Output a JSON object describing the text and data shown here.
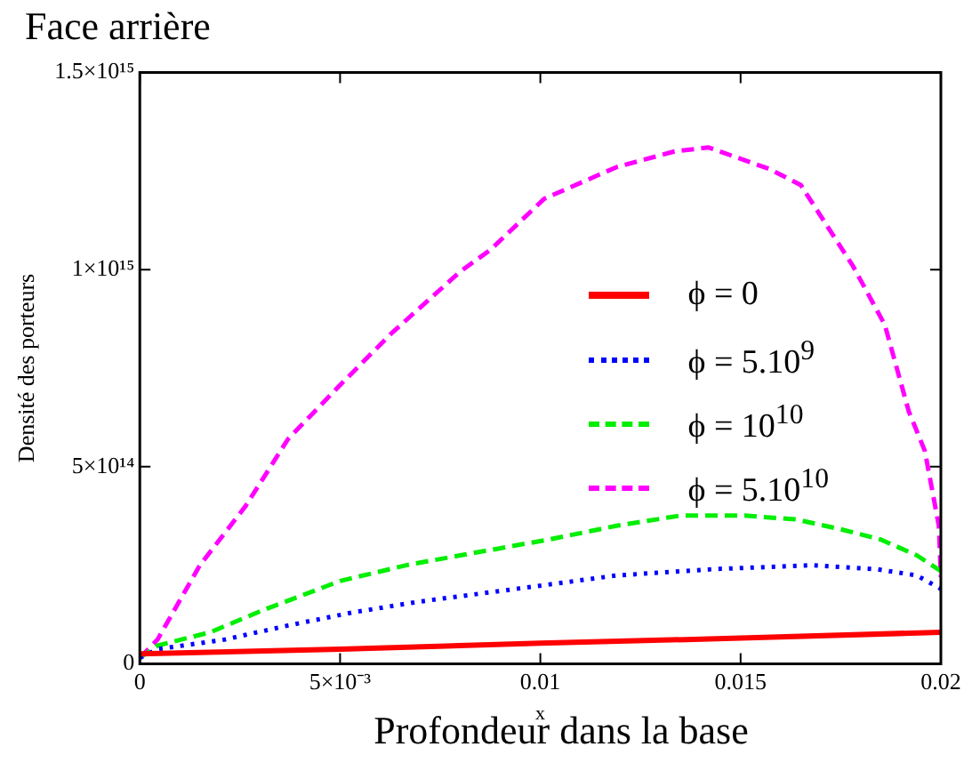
{
  "chart_data": {
    "type": "line",
    "title": "Face arrière",
    "xlabel": "x",
    "ylabel": "Densité des porteurs",
    "annotations": [
      "Profondeur dans la base"
    ],
    "xlim": [
      0,
      0.02
    ],
    "xticks": [
      0,
      {
        "value": 0.005,
        "label": "5×10⁻³"
      },
      0.01,
      0.015,
      0.02
    ],
    "ylim": [
      0,
      1500000000000000.0
    ],
    "yticks": [
      0,
      {
        "value": 500000000000000.0,
        "label": "5×10¹⁴"
      },
      {
        "value": 1000000000000000.0,
        "label": "1×10¹⁵"
      },
      {
        "value": 1500000000000000.0,
        "label": "1.5×10¹⁵"
      }
    ],
    "grid": false,
    "legend": "right",
    "marker": "none",
    "series": [
      {
        "name": "ϕ = 0",
        "color": "#ff0000",
        "line_style": "solid",
        "x": [
          0,
          0.005,
          0.01,
          0.015,
          0.02
        ],
        "values": [
          25000000000000.0,
          37000000000000.0,
          52000000000000.0,
          65000000000000.0,
          80000000000000.0
        ]
      },
      {
        "name": "ϕ = 5.10$^{9}$",
        "color": "#0000ff",
        "line_style": "dotted",
        "x": [
          0,
          0.00044,
          0.0021,
          0.0037,
          0.0053,
          0.007,
          0.0094,
          0.0119,
          0.0143,
          0.0168,
          0.0184,
          0.0194,
          0.02
        ],
        "values": [
          15000000000000.0,
          37000000000000.0,
          61000000000000.0,
          97000000000000.0,
          130000000000000.0,
          158000000000000.0,
          190000000000000.0,
          224000000000000.0,
          240000000000000.0,
          250000000000000.0,
          240000000000000.0,
          224000000000000.0,
          190000000000000.0
        ]
      },
      {
        "name": "ϕ = 10$^{10}$",
        "color": "#00ee00",
        "line_style": "dashed",
        "x": [
          0,
          0.00044,
          0.00176,
          0.0031,
          0.005,
          0.00665,
          0.008,
          0.0102,
          0.0119,
          0.0135,
          0.0151,
          0.0164,
          0.01755,
          0.0185,
          0.0194,
          0.02
        ],
        "values": [
          15000000000000.0,
          46000000000000.0,
          80000000000000.0,
          137000000000000.0,
          210000000000000.0,
          250000000000000.0,
          275000000000000.0,
          315000000000000.0,
          350000000000000.0,
          376000000000000.0,
          376000000000000.0,
          366000000000000.0,
          340000000000000.0,
          315000000000000.0,
          275000000000000.0,
          235000000000000.0
        ]
      },
      {
        "name": "ϕ = 5.10$^{10}$",
        "color": "#ff00ff",
        "line_style": "dashed",
        "x": [
          0,
          0.00044,
          0.0015,
          0.00264,
          0.0037,
          0.005,
          0.0063,
          0.008,
          0.00875,
          0.0101,
          0.0119,
          0.01335,
          0.0142,
          0.0157,
          0.0165,
          0.0178,
          0.0186,
          0.0192,
          0.0196,
          0.01995,
          0.02
        ],
        "values": [
          15000000000000.0,
          61000000000000.0,
          250000000000000.0,
          400000000000000.0,
          570000000000000.0,
          707000000000000.0,
          840000000000000.0,
          995000000000000.0,
          1050000000000000.0,
          1180000000000000.0,
          1260000000000000.0,
          1300000000000000.0,
          1310000000000000.0,
          1256000000000000.0,
          1215000000000000.0,
          1010000000000000.0,
          860000000000000.0,
          640000000000000.0,
          540000000000000.0,
          350000000000000.0,
          220000000000000.0
        ]
      }
    ]
  }
}
